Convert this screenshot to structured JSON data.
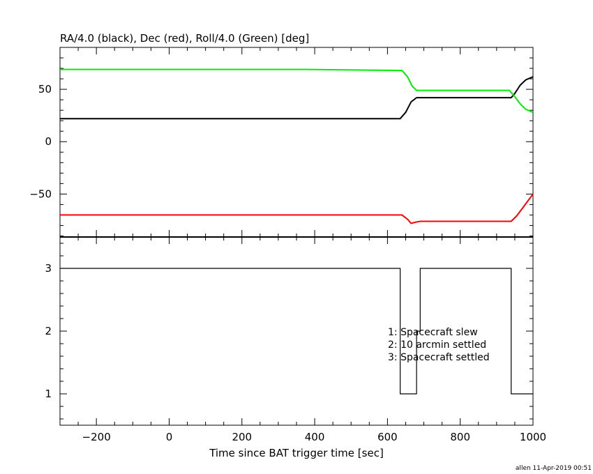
{
  "chart_data": [
    {
      "type": "line",
      "title": "RA/4.0 (black), Dec (red), Roll/4.0 (Green) [deg]",
      "xlim": [
        -300,
        1000
      ],
      "ylim": [
        -91,
        90
      ],
      "xticks": [
        -200,
        0,
        200,
        400,
        600,
        800,
        1000
      ],
      "yticks": [
        -50,
        0,
        50
      ],
      "series": [
        {
          "name": "RA/4.0",
          "color": "#000000",
          "x": [
            -300,
            375,
            635,
            650,
            665,
            680,
            700,
            720,
            940,
            950,
            965,
            980,
            1000
          ],
          "y": [
            22,
            22,
            22,
            28,
            38,
            42,
            42,
            42,
            42,
            46,
            54,
            59,
            62
          ]
        },
        {
          "name": "Dec",
          "color": "#ff0000",
          "x": [
            -300,
            375,
            640,
            655,
            665,
            675,
            690,
            700,
            940,
            955,
            970,
            985,
            1000
          ],
          "y": [
            -70,
            -70,
            -70,
            -74,
            -78,
            -77,
            -76,
            -76,
            -76,
            -71,
            -64,
            -57,
            -50
          ]
        },
        {
          "name": "Roll/4.0",
          "color": "#00ee00",
          "x": [
            -300,
            375,
            640,
            655,
            668,
            680,
            700,
            720,
            935,
            950,
            965,
            980,
            1000
          ],
          "y": [
            69,
            69,
            68,
            62,
            53,
            49,
            49,
            49,
            49,
            43,
            36,
            31,
            28
          ]
        }
      ]
    },
    {
      "type": "line",
      "xlabel": "Time since BAT trigger time [sec]",
      "xlim": [
        -300,
        1000
      ],
      "ylim": [
        0.5,
        3.5
      ],
      "yticks": [
        1,
        2,
        3
      ],
      "series": [
        {
          "color": "#000000",
          "x": [
            -300,
            635,
            635,
            680,
            680,
            690,
            690,
            940,
            940,
            1000
          ],
          "y": [
            3,
            3,
            1,
            1,
            2,
            2,
            3,
            3,
            1,
            1
          ]
        }
      ],
      "legend_lines": [
        "1: Spacecraft slew",
        "2: 10 arcmin settled",
        "3: Spacecraft settled"
      ]
    }
  ],
  "footer": "allen 11-Apr-2019 00:51"
}
